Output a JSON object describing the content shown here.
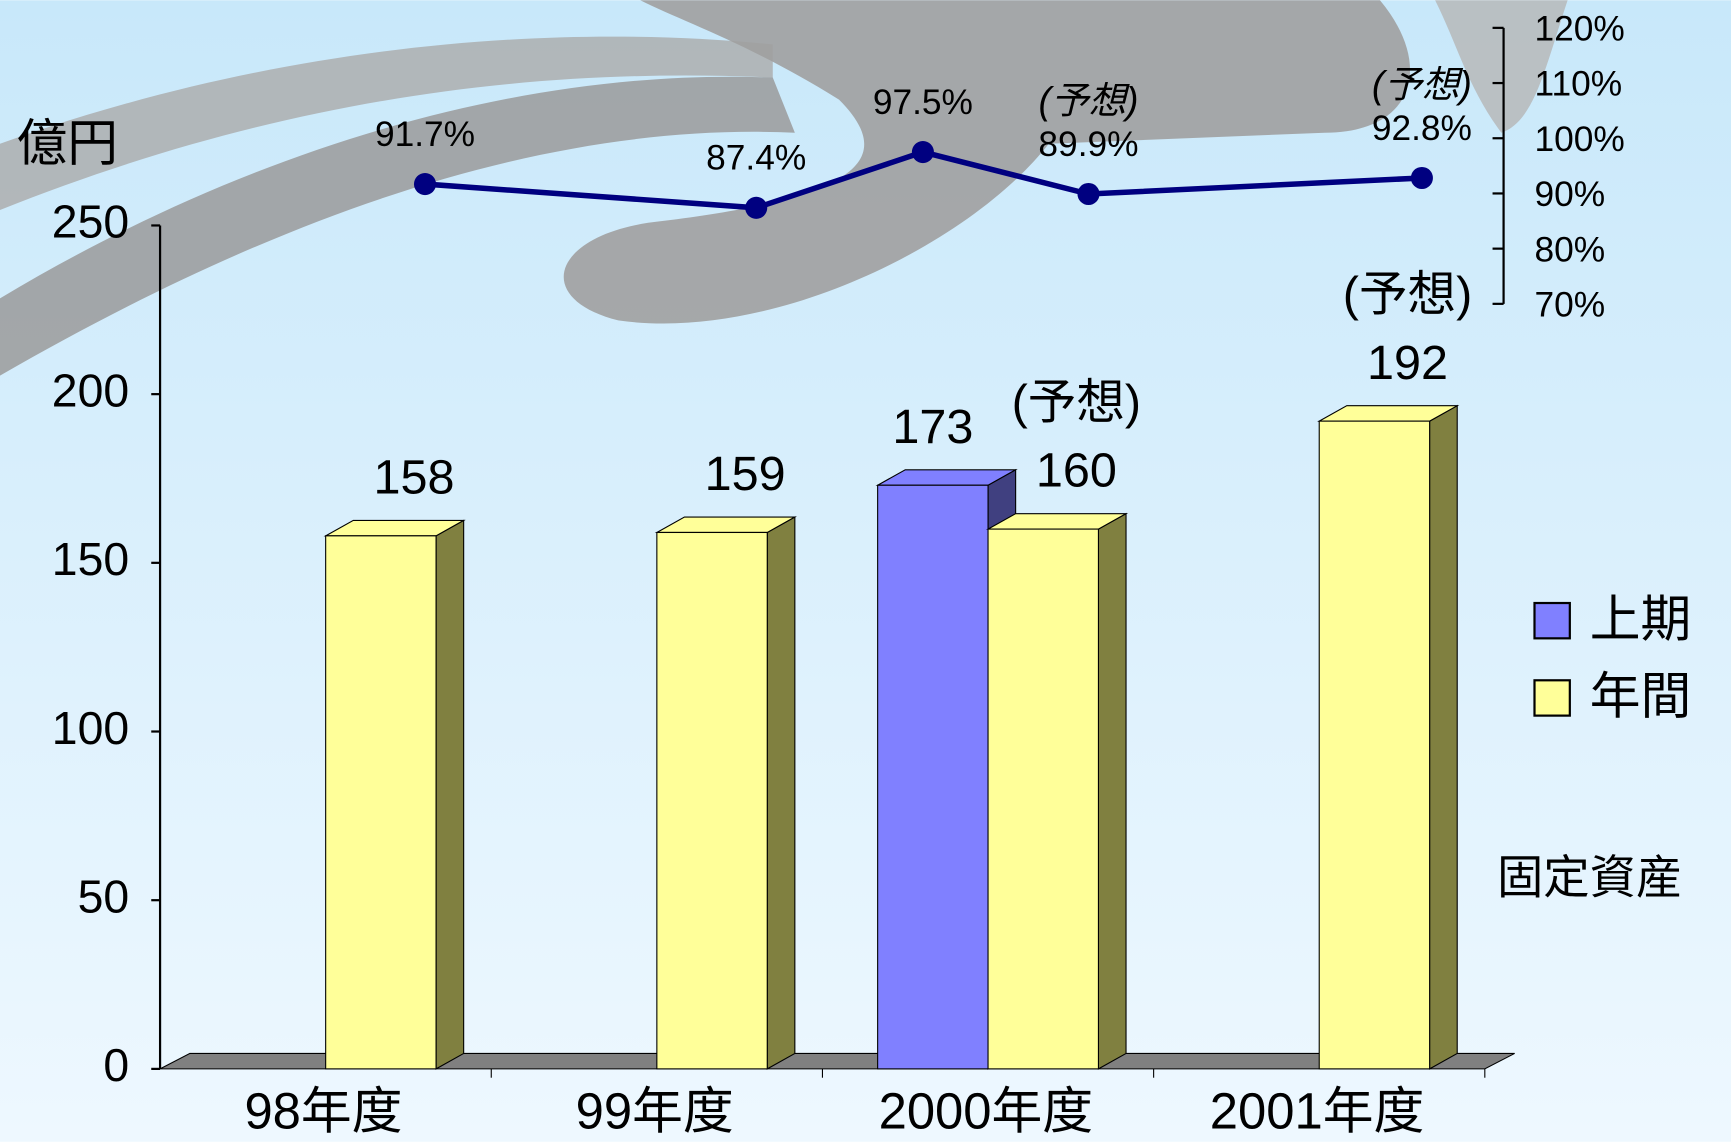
{
  "chart_data": [
    {
      "type": "bar",
      "y_label": "億円",
      "caption": "固定資産",
      "categories": [
        "98年度",
        "99年度",
        "2000年度",
        "2001年度"
      ],
      "series": [
        {
          "name": "上期",
          "color": "#8080ff",
          "side_color": "#404080",
          "values": [
            null,
            null,
            173,
            null
          ]
        },
        {
          "name": "年間",
          "color": "#ffff99",
          "side_color": "#808040",
          "values": [
            158,
            159,
            160,
            192
          ],
          "notes": [
            null,
            null,
            "(予想)",
            "(予想)"
          ]
        }
      ],
      "ylim": [
        0,
        250
      ],
      "yticks": [
        0,
        50,
        100,
        150,
        200,
        250
      ]
    },
    {
      "type": "line",
      "color": "#000080",
      "axis": "y2",
      "values": [
        91.7,
        87.4,
        97.5,
        89.9,
        92.8
      ],
      "value_labels": [
        "91.7%",
        "87.4%",
        "97.5%",
        "89.9%",
        "92.8%"
      ],
      "notes": [
        null,
        null,
        null,
        "(予想)",
        "(予想)"
      ],
      "y2lim": [
        70,
        120
      ],
      "y2ticks": [
        {
          "value": 70,
          "label": "70%"
        },
        {
          "value": 80,
          "label": "80%"
        },
        {
          "value": 90,
          "label": "90%"
        },
        {
          "value": 100,
          "label": "100%"
        },
        {
          "value": 110,
          "label": "110%"
        },
        {
          "value": 120,
          "label": "120%"
        }
      ]
    }
  ]
}
